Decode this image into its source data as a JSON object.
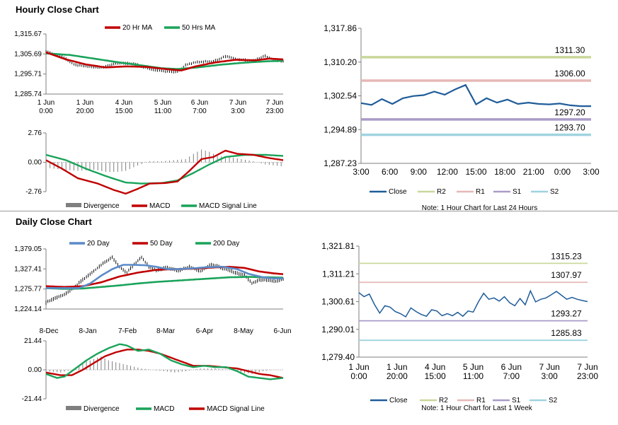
{
  "sections": {
    "hourly_title": "Hourly Close Chart",
    "daily_title": "Daily Close Chart"
  },
  "colors": {
    "ma_short": "#c00000",
    "ma_long": "#1aa35a",
    "ma_200": "#1aa35a",
    "ma_20d": "#5b8bc9",
    "price": "#111111",
    "close_line": "#1f5c99",
    "r2": "#c9d89a",
    "r1": "#e6b8b7",
    "s1": "#a99bc8",
    "s2": "#9fd3df",
    "hist": "#7f7f7f",
    "zero": "#bfbfbf",
    "axis": "#7f7f7f"
  },
  "chart_data": [
    {
      "id": "hourly_price",
      "type": "line",
      "title": "Hourly Close Chart",
      "legend": [
        "20 Hr MA",
        "50 Hrs MA"
      ],
      "ylim": [
        1285.74,
        1315.67
      ],
      "yticks": [
        "1,315.67",
        "1,305.69",
        "1,295.71",
        "1,285.74"
      ],
      "xticks": [
        [
          "1 Jun",
          "0:00"
        ],
        [
          "1 Jun",
          "20:00"
        ],
        [
          "4 Jun",
          "15:00"
        ],
        [
          "5 Jun",
          "11:00"
        ],
        [
          "6 Jun",
          "7:00"
        ],
        [
          "7 Jun",
          "3:00"
        ],
        [
          "7 Jun",
          "23:00"
        ]
      ],
      "n": 120,
      "price": [
        [
          0,
          1306.8
        ],
        [
          8,
          1304.5
        ],
        [
          14,
          1300.5
        ],
        [
          20,
          1299.5
        ],
        [
          28,
          1299.0
        ],
        [
          36,
          1301.2
        ],
        [
          44,
          1300.8
        ],
        [
          52,
          1298.3
        ],
        [
          60,
          1297.0
        ],
        [
          66,
          1296.8
        ],
        [
          70,
          1300.2
        ],
        [
          76,
          1301.8
        ],
        [
          84,
          1302.0
        ],
        [
          90,
          1304.5
        ],
        [
          96,
          1303.0
        ],
        [
          104,
          1302.3
        ],
        [
          110,
          1304.8
        ],
        [
          114,
          1302.8
        ],
        [
          119,
          1302.0
        ]
      ],
      "ma20": [
        [
          0,
          1306.5
        ],
        [
          10,
          1303.0
        ],
        [
          20,
          1300.5
        ],
        [
          30,
          1299.0
        ],
        [
          40,
          1299.5
        ],
        [
          50,
          1299.3
        ],
        [
          60,
          1298.2
        ],
        [
          68,
          1297.5
        ],
        [
          75,
          1299.5
        ],
        [
          85,
          1301.5
        ],
        [
          95,
          1302.8
        ],
        [
          105,
          1302.5
        ],
        [
          112,
          1303.4
        ],
        [
          119,
          1303.0
        ]
      ],
      "ma50": [
        [
          0,
          1306.0
        ],
        [
          12,
          1305.2
        ],
        [
          24,
          1303.4
        ],
        [
          36,
          1301.6
        ],
        [
          48,
          1300.0
        ],
        [
          58,
          1298.6
        ],
        [
          66,
          1298.2
        ],
        [
          76,
          1299.0
        ],
        [
          88,
          1300.4
        ],
        [
          100,
          1301.4
        ],
        [
          110,
          1302.0
        ],
        [
          119,
          1302.3
        ]
      ]
    },
    {
      "id": "hourly_macd",
      "type": "line",
      "legend": [
        "Divergence",
        "MACD",
        "MACD Signal Line"
      ],
      "ylim": [
        -2.76,
        2.76
      ],
      "yticks": [
        "2.76",
        "0.00",
        "-2.76"
      ],
      "n": 120,
      "macd": [
        [
          0,
          0.2
        ],
        [
          8,
          -0.6
        ],
        [
          16,
          -1.5
        ],
        [
          26,
          -2.0
        ],
        [
          34,
          -2.6
        ],
        [
          40,
          -2.95
        ],
        [
          46,
          -2.5
        ],
        [
          52,
          -2.0
        ],
        [
          60,
          -1.95
        ],
        [
          66,
          -1.8
        ],
        [
          72,
          -0.8
        ],
        [
          78,
          0.3
        ],
        [
          84,
          0.5
        ],
        [
          90,
          1.1
        ],
        [
          96,
          0.8
        ],
        [
          104,
          0.7
        ],
        [
          112,
          0.4
        ],
        [
          119,
          0.2
        ]
      ],
      "signal": [
        [
          0,
          0.7
        ],
        [
          10,
          0.2
        ],
        [
          20,
          -0.6
        ],
        [
          30,
          -1.3
        ],
        [
          40,
          -1.9
        ],
        [
          48,
          -2.0
        ],
        [
          58,
          -1.95
        ],
        [
          66,
          -1.7
        ],
        [
          74,
          -1.0
        ],
        [
          82,
          -0.2
        ],
        [
          90,
          0.5
        ],
        [
          100,
          0.7
        ],
        [
          110,
          0.7
        ],
        [
          119,
          0.6
        ]
      ],
      "hist": [
        [
          0,
          -0.5
        ],
        [
          8,
          -0.7
        ],
        [
          16,
          -0.8
        ],
        [
          24,
          -0.7
        ],
        [
          30,
          -0.9
        ],
        [
          36,
          -0.9
        ],
        [
          40,
          -0.8
        ],
        [
          46,
          -0.3
        ],
        [
          52,
          0.1
        ],
        [
          58,
          0.1
        ],
        [
          64,
          0.2
        ],
        [
          70,
          0.3
        ],
        [
          74,
          0.8
        ],
        [
          78,
          1.2
        ],
        [
          82,
          1.0
        ],
        [
          86,
          0.6
        ],
        [
          92,
          0.5
        ],
        [
          98,
          0.3
        ],
        [
          104,
          0.1
        ],
        [
          110,
          -0.2
        ],
        [
          115,
          -0.3
        ],
        [
          119,
          -0.4
        ]
      ]
    },
    {
      "id": "hourly_pivots",
      "type": "line",
      "note": "Note: 1 Hour Chart for Last 24 Hours",
      "legend": [
        "Close",
        "R2",
        "R1",
        "S1",
        "S2"
      ],
      "ylim": [
        1287.23,
        1317.86
      ],
      "yticks": [
        "1,317.86",
        "1,310.20",
        "1,302.54",
        "1,294.89",
        "1,287.23"
      ],
      "xticks": [
        "3:00",
        "6:00",
        "9:00",
        "12:00",
        "15:00",
        "18:00",
        "21:00",
        "0:00",
        "3:00"
      ],
      "close": [
        1300.9,
        1300.5,
        1301.8,
        1300.7,
        1302.0,
        1302.5,
        1302.7,
        1303.5,
        1302.8,
        1304.0,
        1305.0,
        1300.6,
        1302.0,
        1301.0,
        1301.7,
        1300.7,
        1301.0,
        1300.7,
        1300.6,
        1300.8,
        1300.4,
        1300.2,
        1300.2
      ],
      "levels": [
        {
          "name": "R2",
          "value": 1311.3,
          "label": "1311.30"
        },
        {
          "name": "R1",
          "value": 1306.0,
          "label": "1306.00"
        },
        {
          "name": "S1",
          "value": 1297.2,
          "label": "1297.20"
        },
        {
          "name": "S2",
          "value": 1293.7,
          "label": "1293.70"
        }
      ]
    },
    {
      "id": "daily_price",
      "type": "line",
      "title": "Daily Close Chart",
      "legend": [
        "20 Day",
        "50 Day",
        "200 Day"
      ],
      "ylim": [
        1224.14,
        1379.05
      ],
      "yticks": [
        "1,379.05",
        "1,327.41",
        "1,275.77",
        "1,224.14"
      ],
      "xticks": [
        "8-Dec",
        "8-Jan",
        "7-Feb",
        "8-Mar",
        "6-Apr",
        "8-May",
        "6-Jun"
      ],
      "n": 130,
      "price": [
        [
          0,
          1241
        ],
        [
          5,
          1252
        ],
        [
          10,
          1262
        ],
        [
          15,
          1278
        ],
        [
          20,
          1300
        ],
        [
          24,
          1313
        ],
        [
          28,
          1330
        ],
        [
          32,
          1345
        ],
        [
          36,
          1357
        ],
        [
          40,
          1333
        ],
        [
          44,
          1318
        ],
        [
          48,
          1340
        ],
        [
          52,
          1357
        ],
        [
          56,
          1333
        ],
        [
          60,
          1324
        ],
        [
          66,
          1331
        ],
        [
          72,
          1323
        ],
        [
          78,
          1333
        ],
        [
          84,
          1322
        ],
        [
          90,
          1340
        ],
        [
          96,
          1329
        ],
        [
          102,
          1320
        ],
        [
          108,
          1311
        ],
        [
          112,
          1290
        ],
        [
          116,
          1300
        ],
        [
          120,
          1299
        ],
        [
          125,
          1296
        ],
        [
          129,
          1301
        ]
      ],
      "ma20": [
        [
          18,
          1278
        ],
        [
          24,
          1290
        ],
        [
          30,
          1310
        ],
        [
          36,
          1327
        ],
        [
          42,
          1338
        ],
        [
          48,
          1338
        ],
        [
          54,
          1337
        ],
        [
          60,
          1333
        ],
        [
          66,
          1327
        ],
        [
          72,
          1327
        ],
        [
          80,
          1329
        ],
        [
          88,
          1332
        ],
        [
          96,
          1333
        ],
        [
          104,
          1327
        ],
        [
          110,
          1315
        ],
        [
          118,
          1306
        ],
        [
          124,
          1303
        ],
        [
          129,
          1303
        ]
      ],
      "ma50": [
        [
          0,
          1283
        ],
        [
          10,
          1281
        ],
        [
          20,
          1283
        ],
        [
          30,
          1293
        ],
        [
          40,
          1308
        ],
        [
          50,
          1318
        ],
        [
          60,
          1325
        ],
        [
          70,
          1327
        ],
        [
          80,
          1328
        ],
        [
          90,
          1331
        ],
        [
          100,
          1333
        ],
        [
          108,
          1330
        ],
        [
          116,
          1321
        ],
        [
          124,
          1316
        ],
        [
          129,
          1314
        ]
      ],
      "ma200": [
        [
          0,
          1278
        ],
        [
          10,
          1276
        ],
        [
          20,
          1277
        ],
        [
          30,
          1281
        ],
        [
          40,
          1285
        ],
        [
          50,
          1290
        ],
        [
          60,
          1294
        ],
        [
          70,
          1297
        ],
        [
          80,
          1300
        ],
        [
          90,
          1303
        ],
        [
          100,
          1306
        ],
        [
          110,
          1307
        ],
        [
          120,
          1306
        ],
        [
          129,
          1305
        ]
      ]
    },
    {
      "id": "daily_macd",
      "type": "line",
      "legend": [
        "Divergence",
        "MACD",
        "MACD Signal Line"
      ],
      "ylim": [
        -21.44,
        21.44
      ],
      "yticks": [
        "21.44",
        "0.00",
        "-21.44"
      ],
      "n": 130,
      "macd": [
        [
          0,
          -3
        ],
        [
          6,
          -6
        ],
        [
          10,
          -5
        ],
        [
          16,
          1
        ],
        [
          22,
          7
        ],
        [
          28,
          12
        ],
        [
          34,
          16
        ],
        [
          40,
          19
        ],
        [
          44,
          18
        ],
        [
          50,
          14
        ],
        [
          56,
          15
        ],
        [
          62,
          12
        ],
        [
          68,
          7
        ],
        [
          74,
          4
        ],
        [
          80,
          2
        ],
        [
          86,
          3
        ],
        [
          92,
          2
        ],
        [
          98,
          2
        ],
        [
          104,
          -1
        ],
        [
          110,
          -5
        ],
        [
          116,
          -6
        ],
        [
          122,
          -7
        ],
        [
          129,
          -6
        ]
      ],
      "signal": [
        [
          0,
          -2
        ],
        [
          8,
          -4
        ],
        [
          14,
          -4
        ],
        [
          20,
          0
        ],
        [
          26,
          5
        ],
        [
          32,
          10
        ],
        [
          38,
          13
        ],
        [
          44,
          15
        ],
        [
          50,
          15
        ],
        [
          56,
          14
        ],
        [
          62,
          12
        ],
        [
          68,
          9
        ],
        [
          74,
          6
        ],
        [
          80,
          3
        ],
        [
          88,
          3
        ],
        [
          96,
          2
        ],
        [
          104,
          1
        ],
        [
          110,
          -1
        ],
        [
          116,
          -3
        ],
        [
          122,
          -4
        ],
        [
          129,
          -6
        ]
      ],
      "hist": [
        [
          0,
          -1
        ],
        [
          8,
          -2
        ],
        [
          14,
          0
        ],
        [
          20,
          5
        ],
        [
          26,
          8
        ],
        [
          30,
          10
        ],
        [
          34,
          7
        ],
        [
          40,
          5
        ],
        [
          46,
          3
        ],
        [
          52,
          1
        ],
        [
          58,
          0
        ],
        [
          64,
          -1
        ],
        [
          70,
          -2
        ],
        [
          76,
          -1
        ],
        [
          84,
          1
        ],
        [
          92,
          1
        ],
        [
          100,
          0
        ],
        [
          106,
          -2
        ],
        [
          112,
          -3
        ],
        [
          118,
          -1
        ],
        [
          124,
          0
        ],
        [
          129,
          0
        ]
      ]
    },
    {
      "id": "daily_pivots",
      "type": "line",
      "note": "Note: 1 Hour Chart for Last 1 Week",
      "legend": [
        "Close",
        "R2",
        "R1",
        "S1",
        "S2"
      ],
      "ylim": [
        1279.4,
        1321.81
      ],
      "yticks": [
        "1,321.81",
        "1,311.21",
        "1,300.61",
        "1,290.01",
        "1,279.40"
      ],
      "xticks": [
        [
          "1 Jun",
          "0:00"
        ],
        [
          "1 Jun",
          "20:00"
        ],
        [
          "4 Jun",
          "15:00"
        ],
        [
          "5 Jun",
          "11:00"
        ],
        [
          "6 Jun",
          "7:00"
        ],
        [
          "7 Jun",
          "3:00"
        ],
        [
          "7 Jun",
          "23:00"
        ]
      ],
      "close": [
        1304.0,
        1302.5,
        1303.5,
        1299.5,
        1296.2,
        1299.0,
        1298.5,
        1296.8,
        1296.0,
        1294.8,
        1298.2,
        1296.8,
        1295.7,
        1295.0,
        1297.5,
        1297.0,
        1295.2,
        1296.0,
        1295.2,
        1296.5,
        1295.0,
        1297.0,
        1296.6,
        1300.5,
        1303.8,
        1301.5,
        1302.0,
        1300.8,
        1302.5,
        1300.2,
        1299.0,
        1301.8,
        1299.4,
        1304.7,
        1300.5,
        1301.5,
        1302.0,
        1303.2,
        1304.5,
        1303.0,
        1301.5,
        1302.2,
        1301.5,
        1301.0,
        1300.6
      ],
      "levels": [
        {
          "name": "R2",
          "value": 1315.23,
          "label": "1315.23"
        },
        {
          "name": "R1",
          "value": 1307.97,
          "label": "1307.97"
        },
        {
          "name": "S1",
          "value": 1293.27,
          "label": "1293.27"
        },
        {
          "name": "S2",
          "value": 1285.83,
          "label": "1285.83"
        }
      ]
    }
  ]
}
